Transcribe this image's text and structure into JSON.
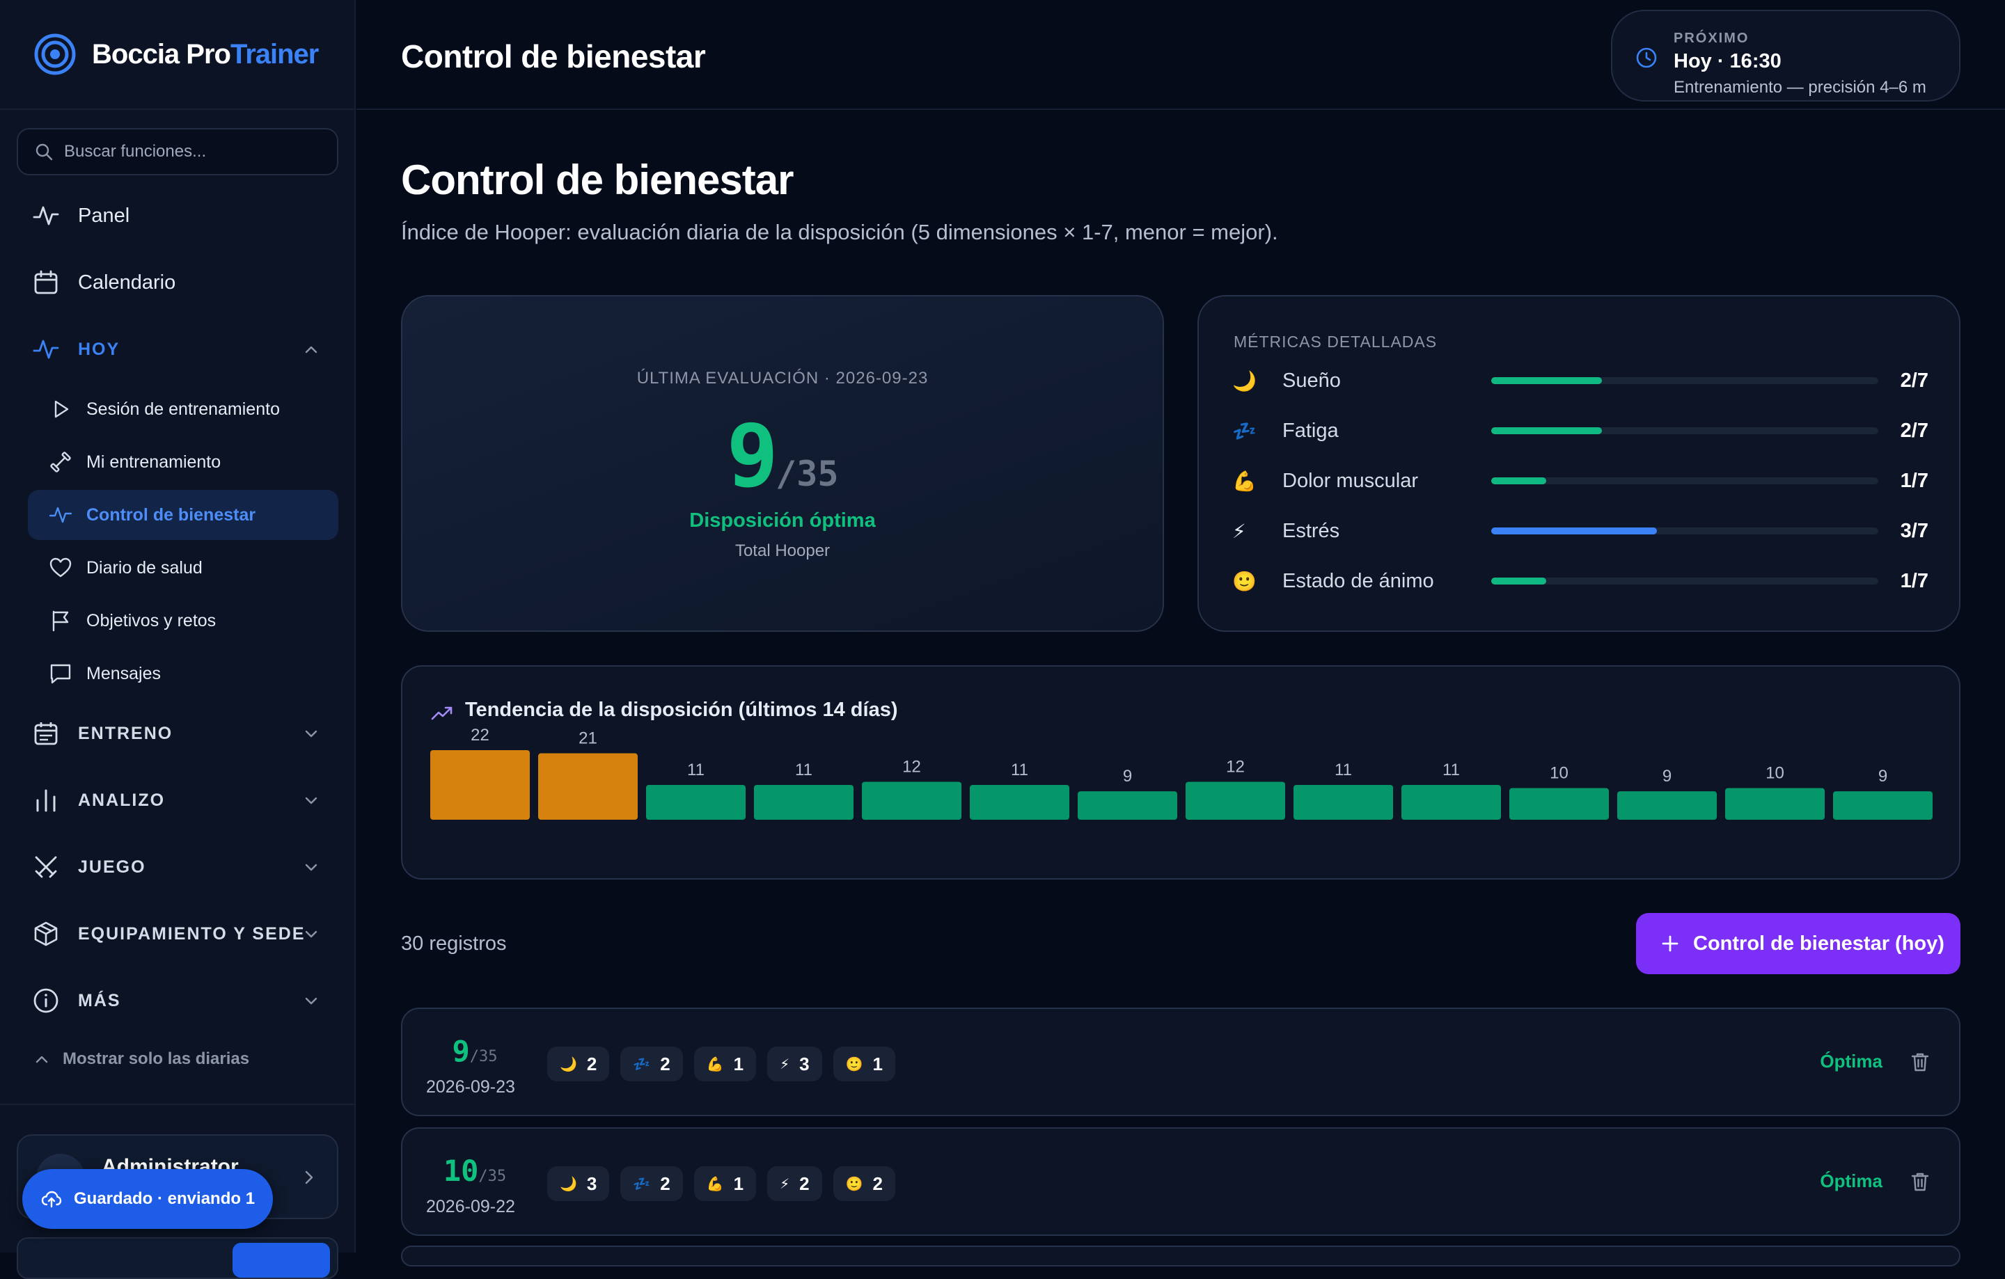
{
  "app": {
    "brand_main": "Boccia Pro",
    "brand_accent": "Trainer"
  },
  "search": {
    "placeholder": "Buscar funciones..."
  },
  "nav": {
    "panel": "Panel",
    "calendar": "Calendario",
    "today_group": "HOY",
    "today_items": [
      "Sesión de entrenamiento",
      "Mi entrenamiento",
      "Control de bienestar",
      "Diario de salud",
      "Objetivos y retos",
      "Mensajes"
    ],
    "groups": [
      "ENTRENO",
      "ANALIZO",
      "JUEGO",
      "EQUIPAMIENTO Y SEDE",
      "MÁS"
    ],
    "show_daily": "Mostrar solo las diarias"
  },
  "user": {
    "name": "Administrator"
  },
  "save_status": "Guardado · enviando 1",
  "header": {
    "title": "Control de bienestar",
    "next_label": "PRÓXIMO",
    "next_when": "Hoy · 16:30",
    "next_desc": "Entrenamiento — precisión 4–6 m"
  },
  "page": {
    "title": "Control de bienestar",
    "subtitle": "Índice de Hooper: evaluación diaria de la disposición (5 dimensiones × 1-7, menor = mejor)."
  },
  "score": {
    "eyebrow": "ÚLTIMA EVALUACIÓN · 2026-09-23",
    "value": "9",
    "max": "/35",
    "status": "Disposición óptima",
    "caption": "Total Hooper"
  },
  "metrics": {
    "title": "MÉTRICAS DETALLADAS",
    "items": [
      {
        "emoji": "🌙",
        "name": "Sueño",
        "value": 2,
        "label": "2/7",
        "color": "#10b981"
      },
      {
        "emoji": "💤",
        "name": "Fatiga",
        "value": 2,
        "label": "2/7",
        "color": "#10b981"
      },
      {
        "emoji": "💪",
        "name": "Dolor muscular",
        "value": 1,
        "label": "1/7",
        "color": "#10b981"
      },
      {
        "emoji": "⚡",
        "name": "Estrés",
        "value": 3,
        "label": "3/7",
        "color": "#3b82f6"
      },
      {
        "emoji": "🙂",
        "name": "Estado de ánimo",
        "value": 1,
        "label": "1/7",
        "color": "#10b981"
      }
    ]
  },
  "trend": {
    "title": "Tendencia de la disposición (últimos 14 días)"
  },
  "chart_data": {
    "type": "bar",
    "title": "Tendencia de la disposición (últimos 14 días)",
    "values": [
      22,
      21,
      11,
      11,
      12,
      11,
      9,
      12,
      11,
      11,
      10,
      9,
      10,
      9
    ],
    "colors": [
      "#d4820d",
      "#d4820d",
      "#059669",
      "#059669",
      "#059669",
      "#059669",
      "#059669",
      "#059669",
      "#059669",
      "#059669",
      "#059669",
      "#059669",
      "#059669",
      "#059669"
    ],
    "ylim": [
      0,
      22
    ]
  },
  "records": {
    "count_label": "30 registros",
    "add_label": "Control de bienestar (hoy)",
    "entries": [
      {
        "score": "9",
        "max": "/35",
        "date": "2026-09-23",
        "status": "Óptima",
        "chips": [
          {
            "emoji": "🌙",
            "value": "2"
          },
          {
            "emoji": "💤",
            "value": "2"
          },
          {
            "emoji": "💪",
            "value": "1"
          },
          {
            "emoji": "⚡",
            "value": "3"
          },
          {
            "emoji": "🙂",
            "value": "1"
          }
        ]
      },
      {
        "score": "10",
        "max": "/35",
        "date": "2026-09-22",
        "status": "Óptima",
        "chips": [
          {
            "emoji": "🌙",
            "value": "3"
          },
          {
            "emoji": "💤",
            "value": "2"
          },
          {
            "emoji": "💪",
            "value": "1"
          },
          {
            "emoji": "⚡",
            "value": "2"
          },
          {
            "emoji": "🙂",
            "value": "2"
          }
        ]
      }
    ]
  }
}
